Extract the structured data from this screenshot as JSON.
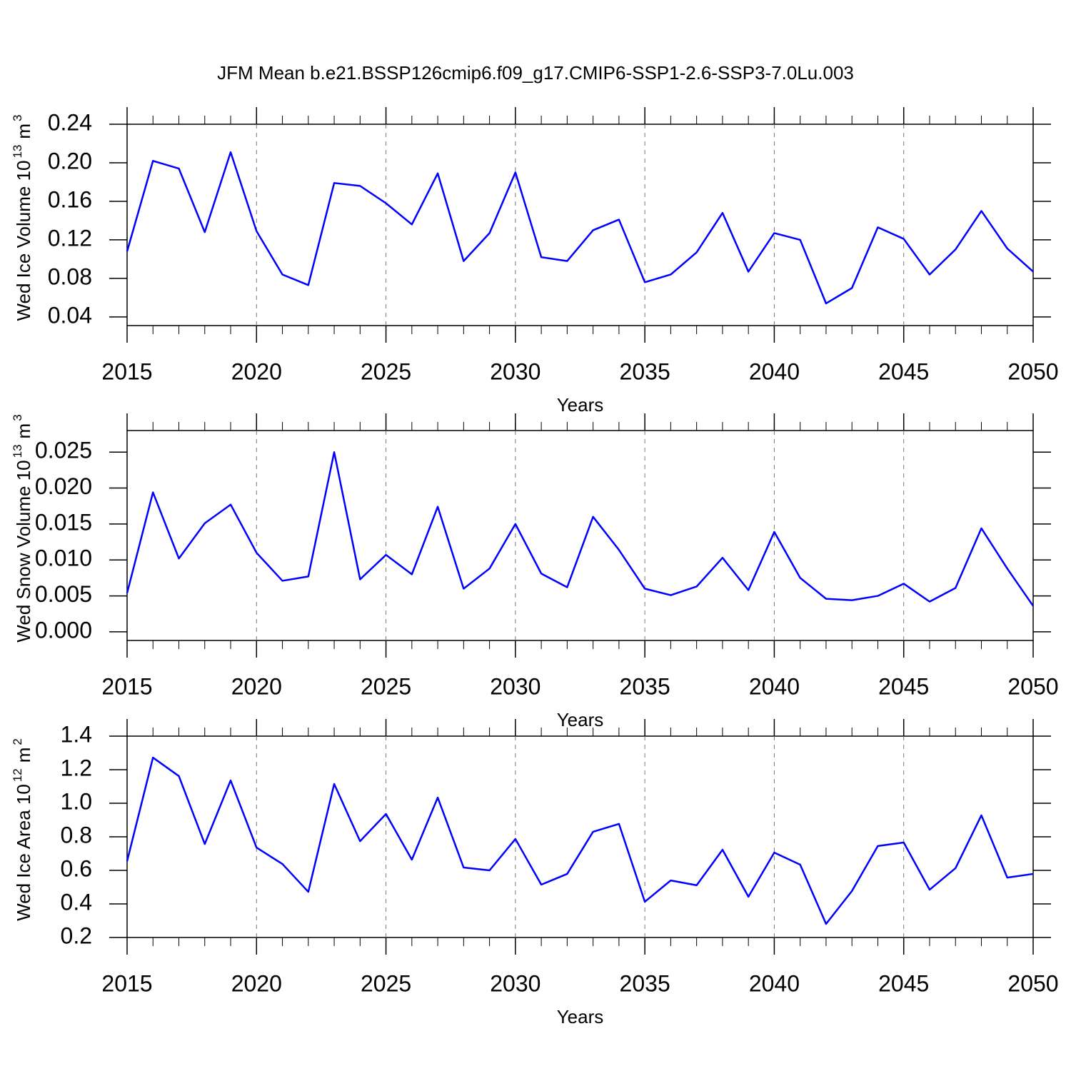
{
  "chart_data": [
    {
      "type": "line",
      "title": "JFM Mean b.e21.BSSP126cmip6.f09_g17.CMIP6-SSP1-2.6-SSP3-7.0Lu.003",
      "ylabel_parts": [
        "Wed Ice Volume 10",
        "13",
        "m",
        "3"
      ],
      "xlabel": "Years",
      "x": [
        2015,
        2016,
        2017,
        2018,
        2019,
        2020,
        2021,
        2022,
        2023,
        2024,
        2025,
        2026,
        2027,
        2028,
        2029,
        2030,
        2031,
        2032,
        2033,
        2034,
        2035,
        2036,
        2037,
        2038,
        2039,
        2040,
        2041,
        2042,
        2043,
        2044,
        2045,
        2046,
        2047,
        2048,
        2049,
        2050
      ],
      "series": [
        {
          "color": "#0000ff",
          "values": [
            0.108,
            0.202,
            0.194,
            0.128,
            0.211,
            0.129,
            0.084,
            0.073,
            0.179,
            0.176,
            0.158,
            0.136,
            0.189,
            0.098,
            0.127,
            0.19,
            0.102,
            0.098,
            0.13,
            0.141,
            0.076,
            0.084,
            0.107,
            0.148,
            0.087,
            0.127,
            0.12,
            0.054,
            0.07,
            0.133,
            0.121,
            0.084,
            0.11,
            0.15,
            0.111,
            0.087
          ]
        }
      ],
      "xlim": [
        2015,
        2050
      ],
      "xticks": [
        2015,
        2020,
        2025,
        2030,
        2035,
        2040,
        2045,
        2050
      ],
      "ylim": [
        0.031,
        0.24
      ],
      "yticks": [
        {
          "value": 0.04,
          "label": "0.04"
        },
        {
          "value": 0.08,
          "label": "0.08"
        },
        {
          "value": 0.12,
          "label": "0.12"
        },
        {
          "value": 0.16,
          "label": "0.16"
        },
        {
          "value": 0.2,
          "label": "0.20"
        },
        {
          "value": 0.24,
          "label": "0.24"
        }
      ],
      "grid": true
    },
    {
      "type": "line",
      "ylabel_parts": [
        "Wed Snow Volume 10",
        "13",
        "m",
        "3"
      ],
      "xlabel": "Years",
      "x": [
        2015,
        2016,
        2017,
        2018,
        2019,
        2020,
        2021,
        2022,
        2023,
        2024,
        2025,
        2026,
        2027,
        2028,
        2029,
        2030,
        2031,
        2032,
        2033,
        2034,
        2035,
        2036,
        2037,
        2038,
        2039,
        2040,
        2041,
        2042,
        2043,
        2044,
        2045,
        2046,
        2047,
        2048,
        2049,
        2050
      ],
      "series": [
        {
          "color": "#0000ff",
          "values": [
            0.0054,
            0.0194,
            0.0102,
            0.0151,
            0.0177,
            0.011,
            0.0071,
            0.0077,
            0.025,
            0.0073,
            0.0107,
            0.008,
            0.0174,
            0.006,
            0.0088,
            0.015,
            0.0081,
            0.0062,
            0.016,
            0.0114,
            0.006,
            0.0051,
            0.0063,
            0.0103,
            0.0058,
            0.0139,
            0.0075,
            0.0046,
            0.0044,
            0.005,
            0.0067,
            0.0042,
            0.0061,
            0.0144,
            0.0088,
            0.0036
          ]
        }
      ],
      "xlim": [
        2015,
        2050
      ],
      "xticks": [
        2015,
        2020,
        2025,
        2030,
        2035,
        2040,
        2045,
        2050
      ],
      "ylim": [
        -0.0012,
        0.028
      ],
      "yticks": [
        {
          "value": 0,
          "label": "0.000"
        },
        {
          "value": 0.005,
          "label": "0.005"
        },
        {
          "value": 0.01,
          "label": "0.010"
        },
        {
          "value": 0.015,
          "label": "0.015"
        },
        {
          "value": 0.02,
          "label": "0.020"
        },
        {
          "value": 0.025,
          "label": "0.025"
        }
      ],
      "grid": true
    },
    {
      "type": "line",
      "ylabel_parts": [
        "Wed Ice Area 10",
        "12",
        "m",
        "2"
      ],
      "xlabel": "Years",
      "x": [
        2015,
        2016,
        2017,
        2018,
        2019,
        2020,
        2021,
        2022,
        2023,
        2024,
        2025,
        2026,
        2027,
        2028,
        2029,
        2030,
        2031,
        2032,
        2033,
        2034,
        2035,
        2036,
        2037,
        2038,
        2039,
        2040,
        2041,
        2042,
        2043,
        2044,
        2045,
        2046,
        2047,
        2048,
        2049,
        2050
      ],
      "series": [
        {
          "color": "#0000ff",
          "values": [
            0.655,
            1.272,
            1.162,
            0.757,
            1.136,
            0.736,
            0.638,
            0.472,
            1.115,
            0.774,
            0.936,
            0.664,
            1.034,
            0.617,
            0.6,
            0.787,
            0.515,
            0.579,
            0.83,
            0.877,
            0.413,
            0.54,
            0.511,
            0.723,
            0.443,
            0.706,
            0.634,
            0.281,
            0.477,
            0.745,
            0.766,
            0.485,
            0.613,
            0.928,
            0.557,
            0.579
          ]
        }
      ],
      "xlim": [
        2015,
        2050
      ],
      "xticks": [
        2015,
        2020,
        2025,
        2030,
        2035,
        2040,
        2045,
        2050
      ],
      "ylim": [
        0.2,
        1.4
      ],
      "yticks": [
        {
          "value": 0.2,
          "label": "0.2"
        },
        {
          "value": 0.4,
          "label": "0.4"
        },
        {
          "value": 0.6,
          "label": "0.6"
        },
        {
          "value": 0.8,
          "label": "0.8"
        },
        {
          "value": 1,
          "label": "1.0"
        },
        {
          "value": 1.2,
          "label": "1.2"
        },
        {
          "value": 1.4,
          "label": "1.4"
        }
      ],
      "grid": true
    }
  ]
}
